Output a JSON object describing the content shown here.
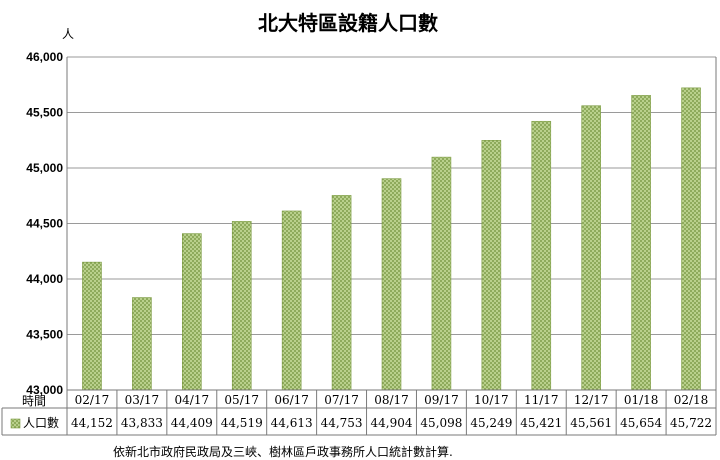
{
  "chart_data": {
    "type": "bar",
    "title": "北大特區設籍人口數",
    "ylabel": "人",
    "ylim": [
      43000,
      46000
    ],
    "yticks": [
      "43,000",
      "43,500",
      "44,000",
      "44,500",
      "45,000",
      "45,500",
      "46,000"
    ],
    "ytick_values": [
      43000,
      43500,
      44000,
      44500,
      45000,
      45500,
      46000
    ],
    "grid": true,
    "categories": [
      "02/17",
      "03/17",
      "04/17",
      "05/17",
      "06/17",
      "07/17",
      "08/17",
      "09/17",
      "10/17",
      "11/17",
      "12/17",
      "01/18",
      "02/18"
    ],
    "series": [
      {
        "name": "人口數",
        "values": [
          44152,
          43833,
          44409,
          44519,
          44613,
          44753,
          44904,
          45098,
          45249,
          45421,
          45561,
          45654,
          45722
        ],
        "labels": [
          "44,152",
          "43,833",
          "44,409",
          "44,519",
          "44,613",
          "44,753",
          "44,904",
          "45,098",
          "45,249",
          "45,421",
          "45,561",
          "45,654",
          "45,722"
        ],
        "color": "#8aab4f"
      }
    ],
    "table_header_time": "時間",
    "table_header_series": "人口數",
    "source_note": "依新北市政府民政局及三峽、樹林區戶政事務所人口統計數計算."
  }
}
